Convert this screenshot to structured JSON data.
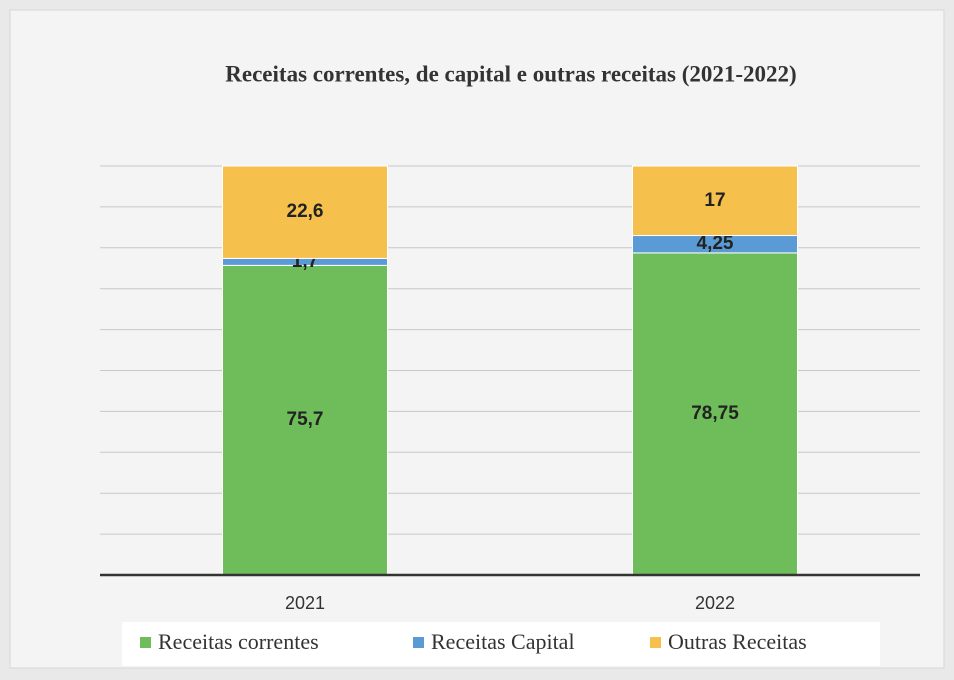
{
  "chart_data": {
    "type": "stacked_bar",
    "title": "Receitas correntes, de capital e outras receitas (2021-2022)",
    "categories": [
      "2021",
      "2022"
    ],
    "series": [
      {
        "name": "Receitas correntes",
        "color": "#6fbc5a",
        "values": [
          75.7,
          78.75
        ],
        "value_labels": [
          "75,7",
          "78,75"
        ]
      },
      {
        "name": "Receitas Capital",
        "color": "#5b9bd5",
        "values": [
          1.7,
          4.25
        ],
        "value_labels": [
          "1,7",
          "4,25"
        ]
      },
      {
        "name": "Outras Receitas",
        "color": "#f6c04c",
        "values": [
          22.6,
          17
        ],
        "value_labels": [
          "22,6",
          "17"
        ]
      }
    ],
    "ylim": [
      0,
      100
    ],
    "yticks": [
      0,
      10,
      20,
      30,
      40,
      50,
      60,
      70,
      80,
      90,
      100
    ],
    "grid": true
  }
}
